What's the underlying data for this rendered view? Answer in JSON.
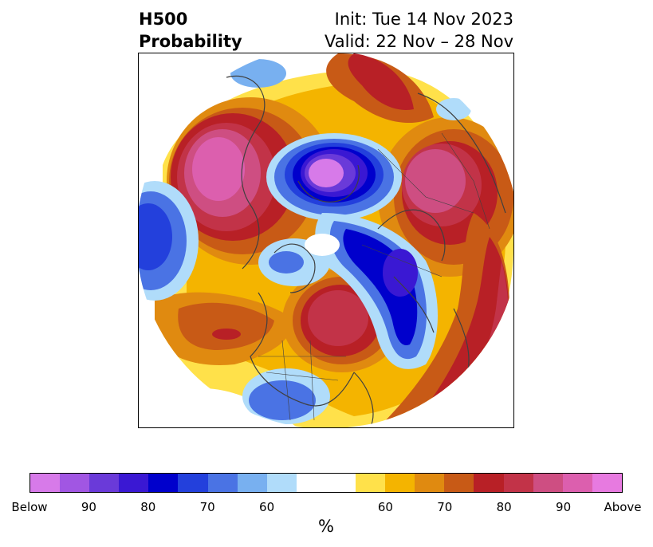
{
  "header": {
    "title_line1": "H500",
    "title_line2": "Probability",
    "init_text": "Init: Tue 14 Nov 2023",
    "valid_text": "Valid: 22 Nov – 28 Nov"
  },
  "map": {
    "projection": "polar-stereographic-north",
    "coastline_color": "#404040"
  },
  "colorbar": {
    "unit_label": "%",
    "below_colors": [
      "#d77ae9",
      "#a156e3",
      "#6a3ad9",
      "#3a18d3",
      "#0000cc",
      "#2340dc",
      "#4a73e4",
      "#78b0f0",
      "#b0dcfa"
    ],
    "neutral_color": "#ffffff",
    "above_colors": [
      "#ffe14a",
      "#f4b400",
      "#e08a10",
      "#c85a16",
      "#b82026",
      "#c23348",
      "#ce4e82",
      "#dc5fae",
      "#e77ae0"
    ],
    "tick_labels": [
      "Below",
      "90",
      "80",
      "70",
      "60",
      "60",
      "70",
      "80",
      "90",
      "Above"
    ]
  }
}
